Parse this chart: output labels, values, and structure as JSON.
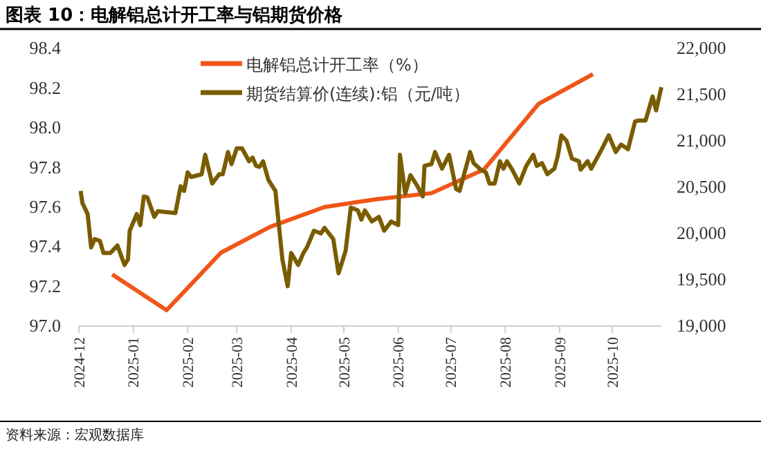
{
  "chart_data": {
    "type": "line",
    "title": "图表 10：电解铝总计开工率与铝期货价格",
    "annotations": [
      "资料来源：宏观数据库"
    ],
    "xlim": [
      "2024-12-01",
      "2025-10-29"
    ],
    "xticks": [
      "2024-12",
      "2025-01",
      "2025-02",
      "2025-03",
      "2025-04",
      "2025-05",
      "2025-06",
      "2025-07",
      "2025-08",
      "2025-09",
      "2025-10"
    ],
    "ylim": [
      97.0,
      98.4
    ],
    "yticks": [
      {
        "value": 97.0,
        "label": "97.0"
      },
      {
        "value": 97.2,
        "label": "97.2"
      },
      {
        "value": 97.4,
        "label": "97.4"
      },
      {
        "value": 97.6,
        "label": "97.6"
      },
      {
        "value": 97.8,
        "label": "97.8"
      },
      {
        "value": 98.0,
        "label": "98.0"
      },
      {
        "value": 98.2,
        "label": "98.2"
      },
      {
        "value": 98.4,
        "label": "98.4"
      }
    ],
    "y2lim": [
      19000,
      22000
    ],
    "y2ticks": [
      {
        "value": 19000,
        "label": "19,000"
      },
      {
        "value": 19500,
        "label": "19,500"
      },
      {
        "value": 20000,
        "label": "20,000"
      },
      {
        "value": 20500,
        "label": "20,500"
      },
      {
        "value": 21000,
        "label": "21,000"
      },
      {
        "value": 21500,
        "label": "21,500"
      },
      {
        "value": 22000,
        "label": "22,000"
      }
    ],
    "grid": false,
    "legend": "top",
    "marker": "none",
    "line_style": "solid",
    "series": [
      {
        "name": "电解铝总计开工率（%）",
        "color": "#f0561a",
        "axis": "y",
        "x": [
          "2024-12-20",
          "2025-01-20",
          "2025-02-20",
          "2025-03-20",
          "2025-04-20",
          "2025-05-20",
          "2025-06-20",
          "2025-07-20",
          "2025-08-20",
          "2025-09-20"
        ],
        "values": [
          97.26,
          97.08,
          97.37,
          97.5,
          97.6,
          97.64,
          97.67,
          97.79,
          98.12,
          98.27
        ]
      },
      {
        "name": "期货结算价(连续):铝（元/吨）",
        "color": "#7a5c00",
        "axis": "y2",
        "x": [
          "2024-12-02",
          "2024-12-03",
          "2024-12-06",
          "2024-12-08",
          "2024-12-10",
          "2024-12-13",
          "2024-12-15",
          "2024-12-19",
          "2024-12-23",
          "2024-12-27",
          "2024-12-29",
          "2024-12-30",
          "2025-01-03",
          "2025-01-05",
          "2025-01-07",
          "2025-01-09",
          "2025-01-13",
          "2025-01-15",
          "2025-01-25",
          "2025-01-28",
          "2025-01-30",
          "2025-02-01",
          "2025-02-03",
          "2025-02-09",
          "2025-02-11",
          "2025-02-15",
          "2025-02-19",
          "2025-02-21",
          "2025-02-24",
          "2025-02-26",
          "2025-03-01",
          "2025-03-04",
          "2025-03-08",
          "2025-03-10",
          "2025-03-12",
          "2025-03-14",
          "2025-03-16",
          "2025-03-19",
          "2025-03-23",
          "2025-03-27",
          "2025-03-30",
          "2025-04-01",
          "2025-04-05",
          "2025-04-08",
          "2025-04-10",
          "2025-04-14",
          "2025-04-18",
          "2025-04-20",
          "2025-04-25",
          "2025-04-28",
          "2025-05-02",
          "2025-05-05",
          "2025-05-09",
          "2025-05-11",
          "2025-05-13",
          "2025-05-17",
          "2025-05-21",
          "2025-05-24",
          "2025-05-28",
          "2025-06-01",
          "2025-06-02",
          "2025-06-05",
          "2025-06-08",
          "2025-06-12",
          "2025-06-15",
          "2025-06-16",
          "2025-06-20",
          "2025-06-22",
          "2025-06-26",
          "2025-06-30",
          "2025-07-04",
          "2025-07-06",
          "2025-07-12",
          "2025-07-14",
          "2025-07-18",
          "2025-07-21",
          "2025-07-23",
          "2025-07-26",
          "2025-07-29",
          "2025-07-31",
          "2025-08-02",
          "2025-08-05",
          "2025-08-09",
          "2025-08-13",
          "2025-08-17",
          "2025-08-19",
          "2025-08-22",
          "2025-08-25",
          "2025-08-29",
          "2025-08-31",
          "2025-09-02",
          "2025-09-05",
          "2025-09-08",
          "2025-09-12",
          "2025-09-13",
          "2025-09-17",
          "2025-09-19",
          "2025-09-25",
          "2025-09-29",
          "2025-10-03",
          "2025-10-06",
          "2025-10-10",
          "2025-10-14",
          "2025-10-16",
          "2025-10-20",
          "2025-10-24",
          "2025-10-26",
          "2025-10-29"
        ],
        "values": [
          20460,
          20330,
          20210,
          19850,
          19940,
          19920,
          19790,
          19790,
          19870,
          19660,
          19720,
          20030,
          20210,
          20090,
          20400,
          20390,
          20180,
          20240,
          20220,
          20510,
          20460,
          20660,
          20610,
          20640,
          20850,
          20540,
          20640,
          20640,
          20880,
          20750,
          20920,
          20920,
          20780,
          20820,
          20730,
          20720,
          20780,
          20580,
          20460,
          19720,
          19430,
          19790,
          19660,
          19790,
          19850,
          20030,
          20000,
          20060,
          19940,
          19570,
          19810,
          20280,
          20250,
          20150,
          20250,
          20130,
          20180,
          20030,
          20130,
          20090,
          20850,
          20430,
          20630,
          20510,
          20400,
          20730,
          20750,
          20880,
          20700,
          20850,
          20480,
          20460,
          20880,
          20760,
          20690,
          20660,
          20540,
          20540,
          20780,
          20700,
          20780,
          20690,
          20540,
          20730,
          20850,
          20730,
          20760,
          20640,
          20700,
          20840,
          21060,
          21000,
          20810,
          20780,
          20690,
          20780,
          20700,
          20910,
          21060,
          20880,
          20960,
          20910,
          21210,
          21220,
          21220,
          21480,
          21330,
          21580
        ]
      }
    ]
  }
}
